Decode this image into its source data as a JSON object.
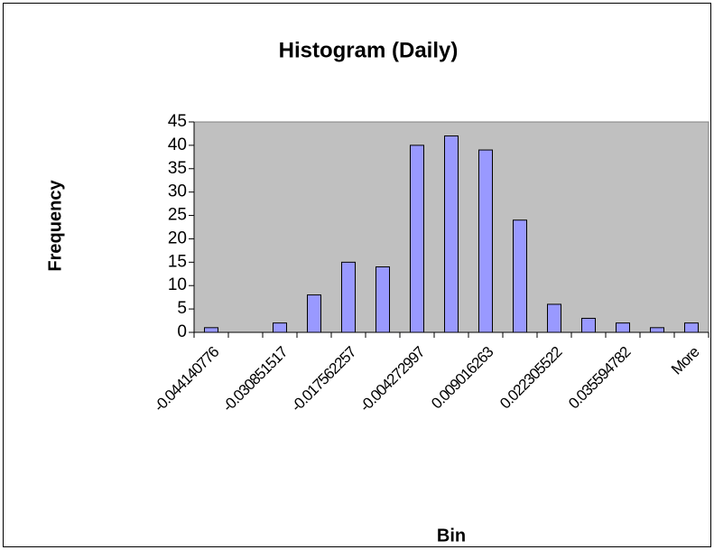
{
  "chart_data": {
    "type": "bar",
    "title": "Histogram (Daily)",
    "x_label": "Bin",
    "y_label": "Frequency",
    "categories": [
      "-0.044140776",
      null,
      "-0.030851517",
      null,
      "-0.017562257",
      null,
      "-0.004272997",
      null,
      "0.009016263",
      null,
      "0.022305522",
      null,
      "0.035594782",
      null,
      "More"
    ],
    "values": [
      1,
      0,
      2,
      8,
      15,
      14,
      40,
      42,
      39,
      24,
      6,
      3,
      2,
      1,
      2
    ],
    "color": "#9999ff",
    "plot_background": "#c0c0c0",
    "ylim": [
      0,
      45
    ],
    "yticks": [
      0,
      5,
      10,
      15,
      20,
      25,
      30,
      35,
      40,
      45
    ]
  }
}
